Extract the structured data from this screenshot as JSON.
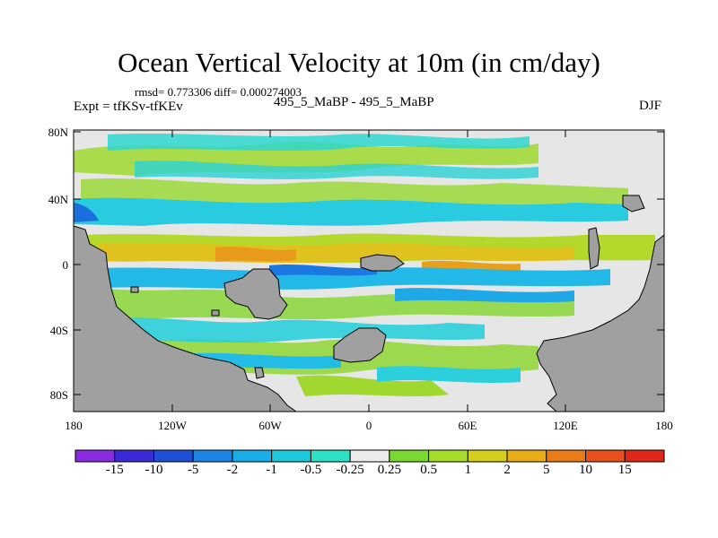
{
  "title": "Ocean Vertical Velocity at 10m (in cm/day)",
  "stats": "rmsd= 0.773306 diff= 0.000274003",
  "expt": "Expt = tfKSv-tfKEv",
  "center_label": "495_5_MaBP - 495_5_MaBP",
  "season": "DJF",
  "lat_labels": [
    "80N",
    "40N",
    "0",
    "40S",
    "80S"
  ],
  "lon_labels": [
    "180",
    "120W",
    "60W",
    "0",
    "60E",
    "120E",
    "180"
  ],
  "colorbar": {
    "labels": [
      "-15",
      "-10",
      "-5",
      "-2",
      "-1",
      "-0.5",
      "-0.25",
      "0.25",
      "0.5",
      "1",
      "2",
      "5",
      "10",
      "15"
    ],
    "colors": [
      "#8a2be2",
      "#3a2ad8",
      "#1d4fd8",
      "#1b86e6",
      "#19aee8",
      "#1ec8dc",
      "#2ee0c4",
      "#ececec",
      "#79d832",
      "#a8dc2a",
      "#d4cf1c",
      "#e8ad18",
      "#ea7c18",
      "#e8501c",
      "#e02818"
    ]
  }
}
